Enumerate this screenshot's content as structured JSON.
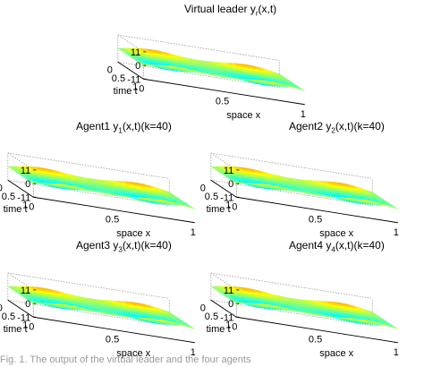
{
  "chart_data": [
    {
      "type": "surface",
      "title_main": "Virtual leader y",
      "title_sub": "r",
      "title_tail": "(x,t)",
      "xlabel": "space x",
      "ylabel": "time t",
      "x_ticks": [
        "0",
        "0.5",
        "1"
      ],
      "y_ticks": [
        "0",
        "0.5",
        "1"
      ],
      "z_ticks": [
        "11",
        "0",
        "-11"
      ],
      "xlim": [
        0,
        1
      ],
      "ylim": [
        0,
        1
      ],
      "zlim": [
        -11,
        11
      ],
      "surface_peak_z": 10,
      "grid": true
    },
    {
      "type": "surface",
      "title_main": "Agent1 y",
      "title_sub": "1",
      "title_tail": "(x,t)(k=40)",
      "xlabel": "space x",
      "ylabel": "time t",
      "x_ticks": [
        "0",
        "0.5",
        "1"
      ],
      "y_ticks": [
        "0",
        "0.5",
        "1"
      ],
      "z_ticks": [
        "11",
        "0",
        "-11"
      ],
      "xlim": [
        0,
        1
      ],
      "ylim": [
        0,
        1
      ],
      "zlim": [
        -11,
        11
      ],
      "surface_peak_z": 10,
      "grid": true
    },
    {
      "type": "surface",
      "title_main": "Agent2 y",
      "title_sub": "2",
      "title_tail": "(x,t)(k=40)",
      "xlabel": "space x",
      "ylabel": "time t",
      "x_ticks": [
        "0",
        "0.5",
        "1"
      ],
      "y_ticks": [
        "0",
        "0.5",
        "1"
      ],
      "z_ticks": [
        "11",
        "0",
        "-11"
      ],
      "xlim": [
        0,
        1
      ],
      "ylim": [
        0,
        1
      ],
      "zlim": [
        -11,
        11
      ],
      "surface_peak_z": 10,
      "grid": true
    },
    {
      "type": "surface",
      "title_main": "Agent3 y",
      "title_sub": "3",
      "title_tail": "(x,t)(k=40)",
      "xlabel": "space x",
      "ylabel": "time t",
      "x_ticks": [
        "0",
        "0.5",
        "1"
      ],
      "y_ticks": [
        "0",
        "0.5",
        "1"
      ],
      "z_ticks": [
        "11",
        "0",
        "-11"
      ],
      "xlim": [
        0,
        1
      ],
      "ylim": [
        0,
        1
      ],
      "zlim": [
        -11,
        11
      ],
      "surface_peak_z": 10,
      "grid": true
    },
    {
      "type": "surface",
      "title_main": "Agent4 y",
      "title_sub": "4",
      "title_tail": "(x,t)(k=40)",
      "xlabel": "space x",
      "ylabel": "time t",
      "x_ticks": [
        "0",
        "0.5",
        "1"
      ],
      "y_ticks": [
        "0",
        "0.5",
        "1"
      ],
      "z_ticks": [
        "11",
        "0",
        "-11"
      ],
      "xlim": [
        0,
        1
      ],
      "ylim": [
        0,
        1
      ],
      "zlim": [
        -11,
        11
      ],
      "surface_peak_z": 10,
      "grid": true
    }
  ],
  "caption": "Fig. 1.   The output of the virtual leader and the four agents",
  "colors": {
    "axis": "#000000",
    "grid": "#9a9a9a",
    "caption": "#9a9a9a"
  }
}
